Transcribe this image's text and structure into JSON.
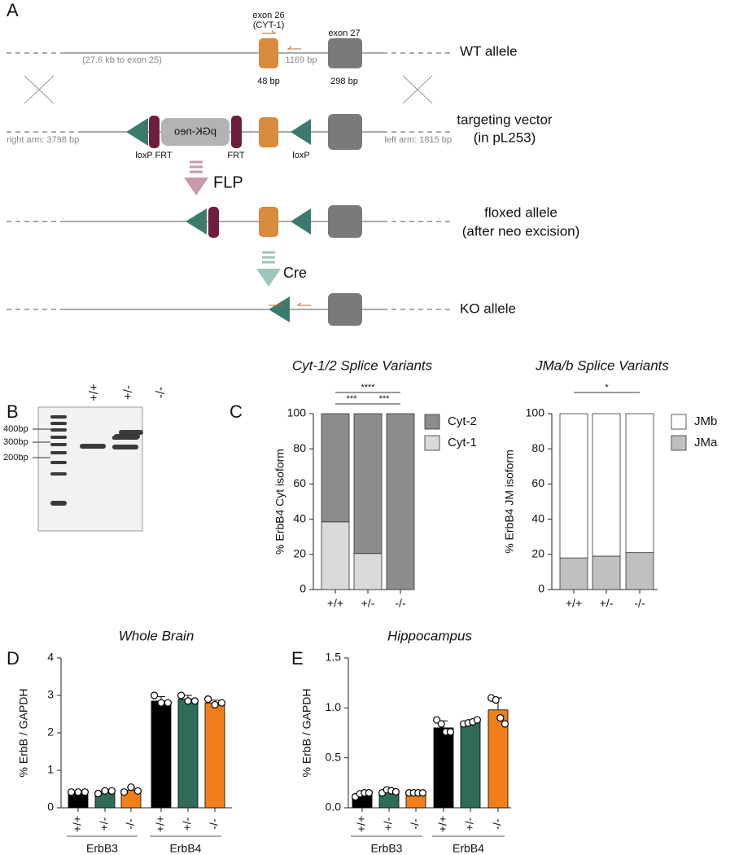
{
  "diagram": {
    "panel": "A",
    "exon26": "exon 26",
    "cyt1": "(CYT-1)",
    "exon27": "exon 27",
    "upstream": "(27.6 kb to exon 25)",
    "intron": "1169 bp",
    "exon26_size": "48 bp",
    "exon27_size": "298 bp",
    "wt": "WT allele",
    "neo": "pGK-neo",
    "right_arm": "right arm: 3798 bp",
    "left_arm": "left arm: 1815 bp",
    "loxp_frt": "loxP FRT",
    "frt": "FRT",
    "loxp": "loxP",
    "targeting": "targeting vector",
    "vector": "(in pL253)",
    "flp": "FLP",
    "floxed": "floxed allele",
    "floxed_note": "(after neo excision)",
    "cre": "Cre",
    "ko": "KO allele"
  },
  "gel": {
    "panel": "B",
    "lanes": [
      "+/+",
      "+/-",
      "-/-"
    ],
    "markers": [
      "400bp",
      "300bp",
      "200bp"
    ]
  },
  "chart_data": [
    {
      "type": "stacked_bar",
      "panel": "C",
      "title": "Cyt-1/2 Splice Variants",
      "y_label": "% ErbB4 Cyt isoform",
      "categories": [
        "+/+",
        "+/-",
        "-/-"
      ],
      "series": [
        {
          "name": "Cyt-1",
          "color": "#d9d9d9",
          "values": [
            38.5,
            20.5,
            0
          ]
        },
        {
          "name": "Cyt-2",
          "color": "#8c8c8c",
          "values": [
            61.5,
            79.5,
            100
          ]
        }
      ],
      "ylim": [
        0,
        100
      ],
      "yticks": [
        0,
        20,
        40,
        60,
        80,
        100
      ],
      "significance": [
        {
          "label": "****",
          "between": [
            0,
            2
          ]
        },
        {
          "label": "***",
          "between": [
            0,
            1
          ]
        },
        {
          "label": "***",
          "between": [
            1,
            2
          ]
        }
      ]
    },
    {
      "type": "stacked_bar",
      "title": "JMa/b Splice Variants",
      "y_label": "% ErbB4 JM isoform",
      "categories": [
        "+/+",
        "+/-",
        "-/-"
      ],
      "series": [
        {
          "name": "JMa",
          "color": "#c0c0c0",
          "values": [
            18,
            19,
            21
          ]
        },
        {
          "name": "JMb",
          "color": "#ffffff",
          "values": [
            82,
            81,
            79
          ]
        }
      ],
      "ylim": [
        0,
        100
      ],
      "yticks": [
        0,
        20,
        40,
        60,
        80,
        100
      ],
      "significance": [
        {
          "label": "*",
          "between": [
            0,
            2
          ]
        }
      ]
    },
    {
      "type": "bar",
      "panel": "D",
      "title": "Whole Brain",
      "y_label": "% ErbB / GAPDH",
      "categories": [
        "+/+",
        "+/-",
        "-/-",
        "+/+",
        "+/-",
        "-/-"
      ],
      "groups": [
        "ErbB3",
        "ErbB4"
      ],
      "values": [
        0.41,
        0.43,
        0.47,
        2.85,
        2.9,
        2.8
      ],
      "errors": [
        0.02,
        0.04,
        0.07,
        0.12,
        0.1,
        0.07
      ],
      "points": [
        [
          0.42,
          0.42,
          0.42
        ],
        [
          0.38,
          0.45,
          0.45
        ],
        [
          0.42,
          0.55,
          0.45
        ],
        [
          3.0,
          2.8,
          2.8
        ],
        [
          3.0,
          2.85,
          2.85
        ],
        [
          2.9,
          2.75,
          2.8
        ]
      ],
      "colors": [
        "#000000",
        "#2e6b59",
        "#f07f1a",
        "#000000",
        "#2e6b59",
        "#f07f1a"
      ],
      "ylim": [
        0,
        4
      ],
      "yticks": [
        0,
        1,
        2,
        3,
        4
      ]
    },
    {
      "type": "bar",
      "panel": "E",
      "title": "Hippocampus",
      "y_label": "% ErbB / GAPDH",
      "categories": [
        "+/+",
        "+/-",
        "-/-",
        "+/+",
        "+/-",
        "-/-"
      ],
      "groups": [
        "ErbB3",
        "ErbB4"
      ],
      "values": [
        0.13,
        0.16,
        0.15,
        0.8,
        0.86,
        0.98
      ],
      "errors": [
        0.02,
        0.02,
        0.01,
        0.07,
        0.02,
        0.12
      ],
      "points": [
        [
          0.11,
          0.14,
          0.15,
          0.15
        ],
        [
          0.15,
          0.18,
          0.17,
          0.16
        ],
        [
          0.15,
          0.15,
          0.15,
          0.15
        ],
        [
          0.88,
          0.84,
          0.76,
          0.76
        ],
        [
          0.84,
          0.85,
          0.86,
          0.88
        ],
        [
          1.1,
          1.08,
          0.9,
          0.84
        ]
      ],
      "colors": [
        "#000000",
        "#2e6b59",
        "#f07f1a",
        "#000000",
        "#2e6b59",
        "#f07f1a"
      ],
      "ylim": [
        0,
        1.5
      ],
      "yticks": [
        {
          "value": 0,
          "label": "0.0"
        },
        0.5,
        {
          "value": 1,
          "label": "1.0"
        },
        1.5
      ]
    }
  ]
}
